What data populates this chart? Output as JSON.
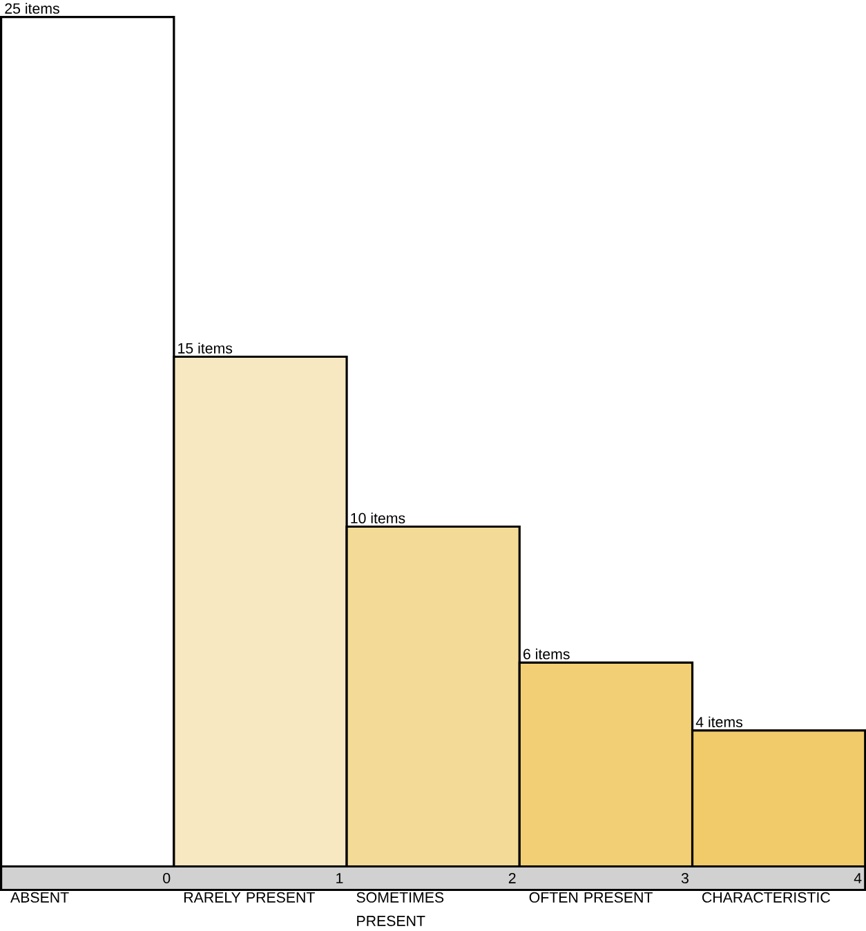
{
  "chart_data": {
    "type": "bar",
    "categories": [
      "ABSENT",
      "RARELY PRESENT",
      "SOMETIMES PRESENT",
      "OFTEN PRESENT",
      "CHARACTERISTIC"
    ],
    "values": [
      25,
      15,
      10,
      6,
      4
    ],
    "value_labels": [
      "25 items",
      "15 items",
      "10 items",
      "6 items",
      "4 items"
    ],
    "colors": [
      "#ffffff",
      "#f7e8c2",
      "#f3da96",
      "#f2cf74",
      "#f1cb6a"
    ],
    "annotations": [
      "0",
      "1",
      "2",
      "3",
      "4"
    ]
  }
}
